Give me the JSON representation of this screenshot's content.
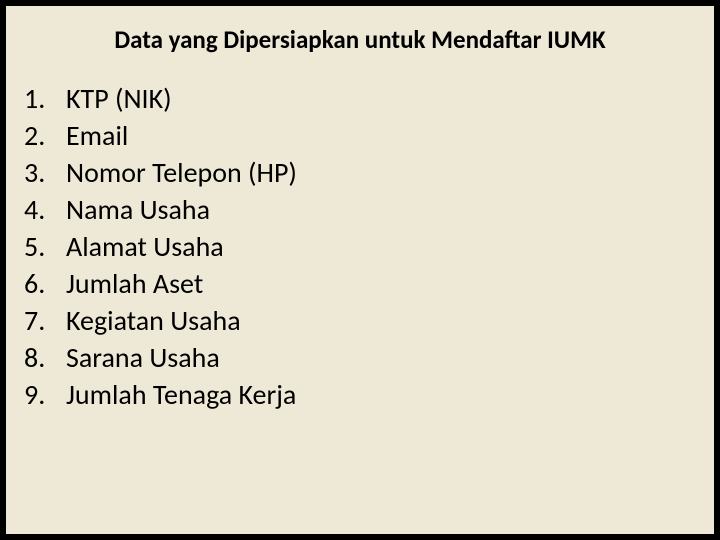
{
  "slide": {
    "title": "Data yang Dipersiapkan untuk Mendaftar IUMK",
    "background_color": "#eee8d6",
    "title_fontsize": 25,
    "title_fontweight": "bold",
    "title_color": "#000000",
    "list_fontsize": 28,
    "list_color": "#000000",
    "items": [
      {
        "num": "1.",
        "text": "KTP (NIK)"
      },
      {
        "num": "2.",
        "text": "Email"
      },
      {
        "num": "3.",
        "text": "Nomor Telepon (HP)"
      },
      {
        "num": "4.",
        "text": "Nama Usaha"
      },
      {
        "num": "5.",
        "text": "Alamat Usaha"
      },
      {
        "num": "6.",
        "text": "Jumlah Aset"
      },
      {
        "num": "7.",
        "text": "Kegiatan Usaha"
      },
      {
        "num": "8.",
        "text": "Sarana Usaha"
      },
      {
        "num": "9.",
        "text": "Jumlah Tenaga Kerja"
      }
    ]
  }
}
